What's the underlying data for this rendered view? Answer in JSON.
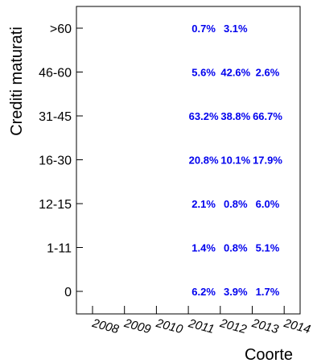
{
  "chart_data": {
    "type": "table",
    "title": "",
    "xlabel": "Coorte",
    "ylabel": "Crediti maturati",
    "x": [
      "2008",
      "2009",
      "2010",
      "2011",
      "2012",
      "2013",
      "2014"
    ],
    "y": [
      "0",
      "1-11",
      "12-15",
      "16-30",
      "31-45",
      "46-60",
      ">60"
    ],
    "cells": [
      {
        "x": "2011",
        "y": "0",
        "label": "6.2%"
      },
      {
        "x": "2012",
        "y": "0",
        "label": "3.9%"
      },
      {
        "x": "2013",
        "y": "0",
        "label": "1.7%"
      },
      {
        "x": "2011",
        "y": "1-11",
        "label": "1.4%"
      },
      {
        "x": "2012",
        "y": "1-11",
        "label": "0.8%"
      },
      {
        "x": "2013",
        "y": "1-11",
        "label": "5.1%"
      },
      {
        "x": "2011",
        "y": "12-15",
        "label": "2.1%"
      },
      {
        "x": "2012",
        "y": "12-15",
        "label": "0.8%"
      },
      {
        "x": "2013",
        "y": "12-15",
        "label": "6.0%"
      },
      {
        "x": "2011",
        "y": "16-30",
        "label": "20.8%"
      },
      {
        "x": "2012",
        "y": "16-30",
        "label": "10.1%"
      },
      {
        "x": "2013",
        "y": "16-30",
        "label": "17.9%"
      },
      {
        "x": "2011",
        "y": "31-45",
        "label": "63.2%"
      },
      {
        "x": "2012",
        "y": "31-45",
        "label": "38.8%"
      },
      {
        "x": "2013",
        "y": "31-45",
        "label": "66.7%"
      },
      {
        "x": "2011",
        "y": "46-60",
        "label": "5.6%"
      },
      {
        "x": "2012",
        "y": "46-60",
        "label": "42.6%"
      },
      {
        "x": "2013",
        "y": "46-60",
        "label": "2.6%"
      },
      {
        "x": "2011",
        "y": ">60",
        "label": "0.7%"
      },
      {
        "x": "2012",
        "y": ">60",
        "label": "3.1%"
      }
    ],
    "grid": false,
    "legend": "none",
    "colors": {
      "text": "#0000ee",
      "axis": "#000000"
    }
  }
}
